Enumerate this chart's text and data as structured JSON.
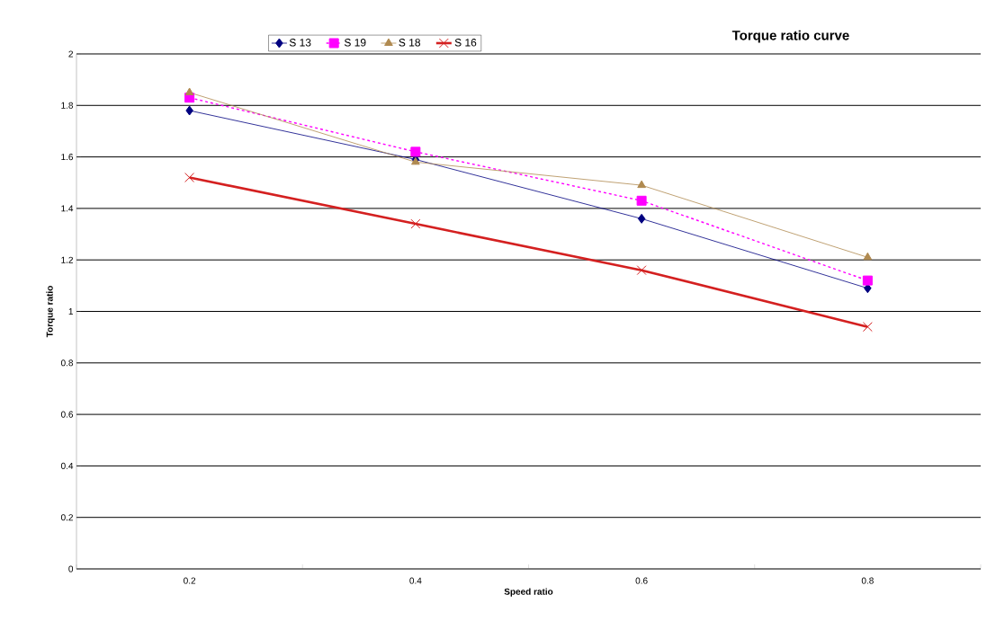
{
  "chart_data": {
    "type": "line",
    "title": "Torque ratio curve",
    "xlabel": "Speed ratio",
    "ylabel": "Torque ratio",
    "categories": [
      "0.2",
      "0.4",
      "0.6",
      "0.8"
    ],
    "series": [
      {
        "name": "S 13",
        "color": "#000080",
        "values": [
          1.78,
          1.59,
          1.36,
          1.09
        ],
        "marker": "diamond",
        "line_style": "solid"
      },
      {
        "name": "S 19",
        "color": "#ff00ff",
        "values": [
          1.83,
          1.62,
          1.43,
          1.12
        ],
        "marker": "square",
        "line_style": "dashed"
      },
      {
        "name": "S 18",
        "color": "#b08a50",
        "values": [
          1.85,
          1.58,
          1.49,
          1.21
        ],
        "marker": "triangle",
        "line_style": "solid"
      },
      {
        "name": "S 16",
        "color": "#d42020",
        "values": [
          1.52,
          1.34,
          1.16,
          0.94
        ],
        "marker": "cross",
        "line_style": "solid"
      }
    ],
    "ylim": [
      0,
      2
    ],
    "yticks": [
      0,
      0.2,
      0.4,
      0.6,
      0.8,
      1,
      1.2,
      1.4,
      1.6,
      1.8,
      2
    ],
    "grid": "y",
    "legend": "top"
  }
}
